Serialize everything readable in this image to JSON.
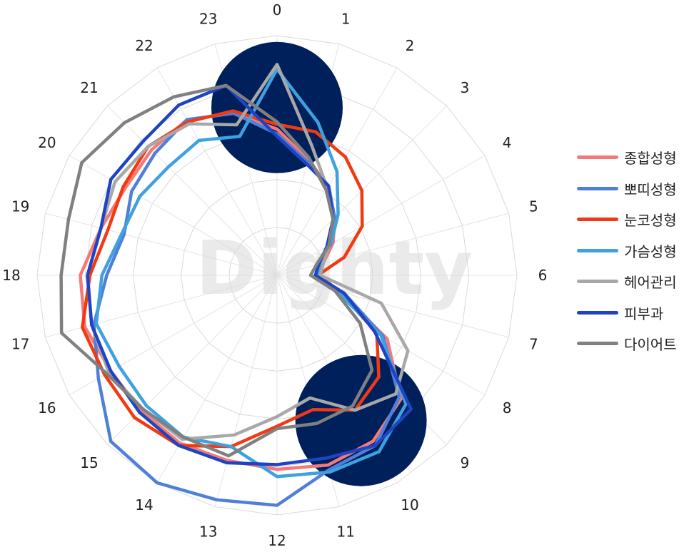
{
  "chart_data": {
    "type": "radar",
    "categories": [
      "0",
      "1",
      "2",
      "3",
      "4",
      "5",
      "6",
      "7",
      "8",
      "9",
      "10",
      "11",
      "12",
      "13",
      "14",
      "15",
      "16",
      "17",
      "18",
      "19",
      "20",
      "21",
      "22",
      "23"
    ],
    "rmax": 10,
    "grid": true,
    "legend_position": "right",
    "watermark": "Dighty",
    "highlight_circles": [
      {
        "label": "0",
        "color": "#00205b"
      },
      {
        "label": "10",
        "color": "#00205b"
      }
    ],
    "series": [
      {
        "name": "종합성형",
        "color": "#f47a7a",
        "values": [
          6.1,
          5.0,
          4.3,
          3.4,
          2.7,
          2.0,
          1.8,
          2.7,
          5.3,
          7.3,
          8.0,
          8.2,
          8.1,
          8.0,
          8.1,
          8.0,
          8.0,
          8.3,
          8.2,
          7.6,
          7.3,
          7.4,
          7.5,
          7.0
        ]
      },
      {
        "name": "뽀띠성형",
        "color": "#4e7fd9",
        "values": [
          5.9,
          4.9,
          4.3,
          3.4,
          2.5,
          1.9,
          1.6,
          2.9,
          5.1,
          7.2,
          8.2,
          8.4,
          9.6,
          9.7,
          10.0,
          9.8,
          8.6,
          7.9,
          7.1,
          6.6,
          7.0,
          7.2,
          7.5,
          7.0
        ]
      },
      {
        "name": "눈코성형",
        "color": "#f23a12",
        "values": [
          6.3,
          6.2,
          5.7,
          5.0,
          4.1,
          2.9,
          1.7,
          2.7,
          4.8,
          6.0,
          6.5,
          5.8,
          6.3,
          7.4,
          8.2,
          8.4,
          8.3,
          8.4,
          7.8,
          7.3,
          7.4,
          7.6,
          7.4,
          7.1
        ]
      },
      {
        "name": "가슴성형",
        "color": "#3ea1e0",
        "values": [
          8.6,
          6.6,
          5.0,
          3.6,
          2.6,
          1.8,
          1.7,
          2.6,
          5.0,
          7.6,
          8.5,
          8.5,
          8.4,
          7.4,
          7.8,
          7.7,
          7.6,
          7.8,
          7.3,
          6.7,
          6.6,
          6.4,
          6.5,
          6.0
        ]
      },
      {
        "name": "헤어관리",
        "color": "#a8a8a8",
        "values": [
          8.8,
          5.6,
          4.2,
          3.3,
          2.5,
          2.0,
          1.8,
          4.5,
          6.3,
          7.0,
          6.5,
          5.3,
          5.9,
          6.9,
          7.9,
          7.9,
          8.1,
          8.0,
          7.9,
          7.6,
          7.8,
          7.6,
          7.3,
          6.5
        ]
      },
      {
        "name": "피부과",
        "color": "#1e44c4",
        "values": [
          5.8,
          4.8,
          4.3,
          3.3,
          2.4,
          1.8,
          1.6,
          2.9,
          4.7,
          7.9,
          8.2,
          7.9,
          7.9,
          8.1,
          8.2,
          8.1,
          8.0,
          8.0,
          7.9,
          7.6,
          8.0,
          7.9,
          8.2,
          8.2
        ]
      },
      {
        "name": "다이어트",
        "color": "#808080",
        "values": [
          6.4,
          5.1,
          4.1,
          3.3,
          2.5,
          1.7,
          1.4,
          2.5,
          4.0,
          5.6,
          6.3,
          6.4,
          6.4,
          7.8,
          7.8,
          7.9,
          8.2,
          9.3,
          9.0,
          9.0,
          9.4,
          9.0,
          8.6,
          8.2
        ]
      }
    ]
  }
}
